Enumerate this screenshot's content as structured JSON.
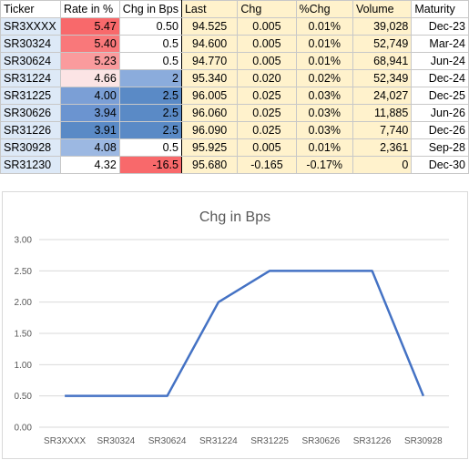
{
  "table": {
    "headers": [
      "Ticker",
      "Rate in %",
      "Chg in Bps",
      "Last",
      "Chg",
      "%Chg",
      "Volume",
      "Maturity"
    ],
    "rows": [
      {
        "ticker": "SR3XXXX",
        "rate": "5.47",
        "chg_bps": "0.50",
        "last": "94.525",
        "chg": "0.005",
        "pct_chg": "0.01%",
        "volume": "39,028",
        "maturity": "Dec-23",
        "rate_color": "#f8696b",
        "bps_color": "#ffffff"
      },
      {
        "ticker": "SR30324",
        "rate": "5.40",
        "chg_bps": "0.5",
        "last": "94.600",
        "chg": "0.005",
        "pct_chg": "0.01%",
        "volume": "52,749",
        "maturity": "Mar-24",
        "rate_color": "#f9787a",
        "bps_color": "#ffffff"
      },
      {
        "ticker": "SR30624",
        "rate": "5.23",
        "chg_bps": "0.5",
        "last": "94.770",
        "chg": "0.005",
        "pct_chg": "0.01%",
        "volume": "68,941",
        "maturity": "Jun-24",
        "rate_color": "#fa9b9d",
        "bps_color": "#ffffff"
      },
      {
        "ticker": "SR31224",
        "rate": "4.66",
        "chg_bps": "2",
        "last": "95.340",
        "chg": "0.020",
        "pct_chg": "0.02%",
        "volume": "52,349",
        "maturity": "Dec-24",
        "rate_color": "#fce4e5",
        "bps_color": "#8bacdc"
      },
      {
        "ticker": "SR31225",
        "rate": "4.00",
        "chg_bps": "2.5",
        "last": "96.005",
        "chg": "0.025",
        "pct_chg": "0.03%",
        "volume": "24,027",
        "maturity": "Dec-25",
        "rate_color": "#7b9fd6",
        "bps_color": "#5a8ac6"
      },
      {
        "ticker": "SR30626",
        "rate": "3.94",
        "chg_bps": "2.5",
        "last": "96.060",
        "chg": "0.025",
        "pct_chg": "0.03%",
        "volume": "11,885",
        "maturity": "Jun-26",
        "rate_color": "#6b94d0",
        "bps_color": "#5a8ac6"
      },
      {
        "ticker": "SR31226",
        "rate": "3.91",
        "chg_bps": "2.5",
        "last": "96.090",
        "chg": "0.025",
        "pct_chg": "0.03%",
        "volume": "7,740",
        "maturity": "Dec-26",
        "rate_color": "#5a8ac6",
        "bps_color": "#5a8ac6"
      },
      {
        "ticker": "SR30928",
        "rate": "4.08",
        "chg_bps": "0.5",
        "last": "95.925",
        "chg": "0.005",
        "pct_chg": "0.01%",
        "volume": "2,361",
        "maturity": "Sep-28",
        "rate_color": "#9cb8e2",
        "bps_color": "#ffffff"
      },
      {
        "ticker": "SR31230",
        "rate": "4.32",
        "chg_bps": "-16.5",
        "last": "95.680",
        "chg": "-0.165",
        "pct_chg": "-0.17%",
        "volume": "0",
        "maturity": "Dec-30",
        "rate_color": "#ffffff",
        "bps_color": "#f8696b"
      }
    ]
  },
  "chart_data": {
    "type": "line",
    "title": "Chg in Bps",
    "categories": [
      "SR3XXXX",
      "SR30324",
      "SR30624",
      "SR31224",
      "SR31225",
      "SR30626",
      "SR31226",
      "SR30928"
    ],
    "series": [
      {
        "values": [
          0.5,
          0.5,
          0.5,
          2.0,
          2.5,
          2.5,
          2.5,
          0.5
        ],
        "color": "#4472c4"
      }
    ],
    "ylim": [
      0,
      3
    ],
    "yticks": [
      "0.00",
      "0.50",
      "1.00",
      "1.50",
      "2.00",
      "2.50",
      "3.00"
    ],
    "grid": true,
    "legend": "none"
  }
}
